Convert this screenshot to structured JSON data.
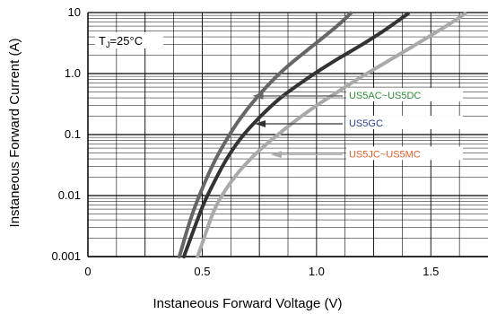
{
  "chart_data": {
    "type": "line",
    "xlabel": "Instaneous Forward Voltage (V)",
    "ylabel": "Instaneous Forward Current (A)",
    "xlim": [
      0,
      1.75
    ],
    "ylim": [
      0.001,
      10
    ],
    "yscale": "log",
    "grid": true,
    "x_ticks": [
      {
        "value": 0,
        "label": "0"
      },
      {
        "value": 0.5,
        "label": "0.5"
      },
      {
        "value": 1.0,
        "label": "1.0"
      },
      {
        "value": 1.5,
        "label": "1.5"
      }
    ],
    "y_ticks": [
      {
        "value": 10,
        "label": "10"
      },
      {
        "value": 1,
        "label": "1.0"
      },
      {
        "value": 0.1,
        "label": "0.1"
      },
      {
        "value": 0.01,
        "label": "0.01"
      },
      {
        "value": 0.001,
        "label": "0.001"
      }
    ],
    "annotation": {
      "label": "T",
      "subscript": "J",
      "suffix": "=25°C"
    },
    "series": [
      {
        "name": "US5AC~US5DC",
        "color": "#666666",
        "label_color": "#2e8b3a",
        "x": [
          0.4,
          0.45,
          0.5,
          0.55,
          0.6,
          0.65,
          0.7,
          0.75,
          0.8,
          0.85,
          0.9,
          1.0,
          1.1,
          1.15
        ],
        "y": [
          0.001,
          0.0042,
          0.013,
          0.034,
          0.075,
          0.15,
          0.27,
          0.45,
          0.72,
          1.1,
          1.6,
          3.2,
          6.5,
          9.8
        ],
        "label_anchor": {
          "x": 0.72,
          "y": 0.43
        },
        "label_at": {
          "x": 1.13,
          "y": 0.43
        }
      },
      {
        "name": "US5GC",
        "color": "#333333",
        "label_color": "#2e3f9e",
        "x": [
          0.42,
          0.5,
          0.55,
          0.6,
          0.65,
          0.7,
          0.75,
          0.8,
          0.85,
          0.9,
          1.0,
          1.1,
          1.2,
          1.3,
          1.4
        ],
        "y": [
          0.001,
          0.0064,
          0.016,
          0.036,
          0.07,
          0.12,
          0.19,
          0.29,
          0.42,
          0.58,
          1.05,
          1.8,
          3.0,
          5.2,
          9.6
        ],
        "label_anchor": {
          "x": 0.73,
          "y": 0.15
        },
        "label_at": {
          "x": 1.13,
          "y": 0.15
        }
      },
      {
        "name": "US5JC~US5MC",
        "color": "#aaaaaa",
        "label_color": "#e0602a",
        "x": [
          0.48,
          0.55,
          0.6,
          0.65,
          0.7,
          0.75,
          0.8,
          0.9,
          1.0,
          1.1,
          1.2,
          1.3,
          1.4,
          1.5,
          1.6,
          1.65
        ],
        "y": [
          0.001,
          0.0055,
          0.012,
          0.022,
          0.036,
          0.055,
          0.08,
          0.16,
          0.3,
          0.52,
          0.9,
          1.5,
          2.5,
          4.2,
          7.2,
          9.6
        ],
        "label_anchor": {
          "x": 0.8,
          "y": 0.047
        },
        "label_at": {
          "x": 1.13,
          "y": 0.047
        }
      }
    ]
  }
}
